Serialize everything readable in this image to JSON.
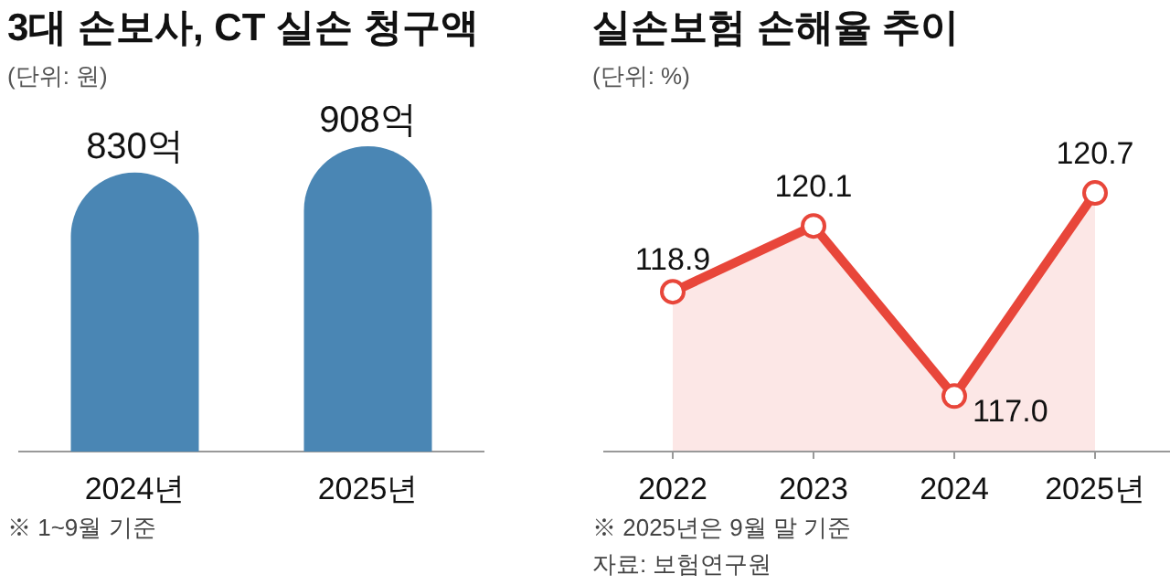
{
  "chart_data": [
    {
      "type": "bar",
      "title": "3대 손보사, CT 실손 청구액",
      "subtitle": "(단위: 원)",
      "categories": [
        "2024년",
        "2025년"
      ],
      "values": [
        830,
        908
      ],
      "value_labels": [
        "830억",
        "908억"
      ],
      "color": "#4a86b4",
      "annotations": [
        "※ 1~9월 기준"
      ]
    },
    {
      "type": "area",
      "title": "실손보험 손해율 추이",
      "subtitle": "(단위: %)",
      "categories": [
        "2022",
        "2023",
        "2024",
        "2025년"
      ],
      "values": [
        118.9,
        120.1,
        117.0,
        120.7
      ],
      "color": "#e8463a",
      "marker": "circle",
      "value_labels": [
        "118.9",
        "120.1",
        "117.0",
        "120.7"
      ],
      "annotations": [
        "※ 2025년은 9월 말 기준",
        "자료: 보험연구원"
      ]
    }
  ]
}
